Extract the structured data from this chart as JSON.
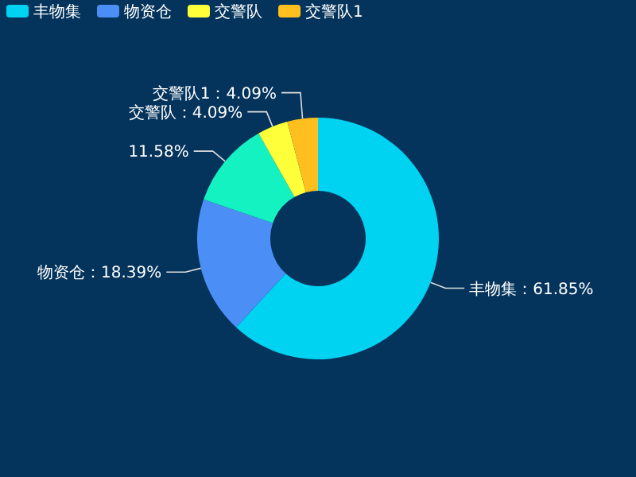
{
  "chart_data": {
    "type": "donut",
    "categories": [
      "丰物集",
      "物资仓",
      null,
      "交警队",
      "交警队1"
    ],
    "values": [
      61.85,
      18.39,
      11.58,
      4.09,
      4.09
    ],
    "value_labels": [
      "：61.85%",
      "：18.39%",
      "11.58%",
      "：4.09%",
      "：4.09%"
    ],
    "colors": [
      "#00d2f2",
      "#4b8ef6",
      "#14f2c2",
      "#ffff3a",
      "#ffbf1e"
    ],
    "legend": "top left"
  }
}
